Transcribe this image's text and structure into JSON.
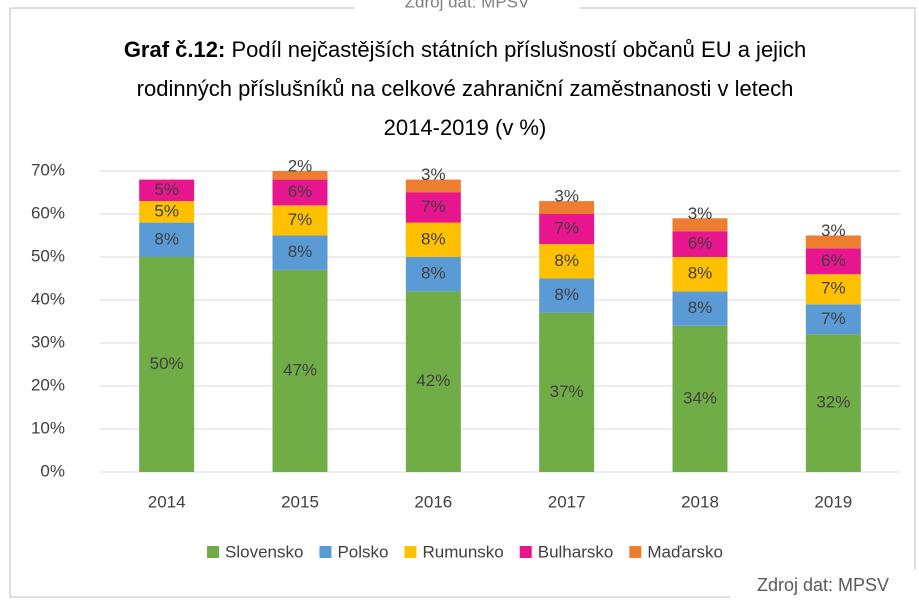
{
  "chart_data": {
    "type": "stacked_bar",
    "title_bold": "Graf č.12:",
    "title": "Podíl nejčastějších státních příslušností občanů EU a jejich rodinných příslušníků na celkové zahraniční zaměstnanosti v letech 2014-2019 (v %)",
    "source": "Zdroj dat: MPSV",
    "categories": [
      "2014",
      "2015",
      "2016",
      "2017",
      "2018",
      "2019"
    ],
    "series": [
      {
        "name": "Slovensko",
        "color": "#70ad47",
        "values": [
          50,
          47,
          42,
          37,
          34,
          32
        ],
        "value_labels": [
          "50%",
          "47%",
          "42%",
          "37%",
          "34%",
          "32%"
        ]
      },
      {
        "name": "Polsko",
        "color": "#5b9bd5",
        "values": [
          8,
          8,
          8,
          8,
          8,
          7
        ],
        "value_labels": [
          "8%",
          "8%",
          "8%",
          "8%",
          "8%",
          "7%"
        ]
      },
      {
        "name": "Rumunsko",
        "color": "#ffc000",
        "values": [
          5,
          7,
          8,
          8,
          8,
          7
        ],
        "value_labels": [
          "5%",
          "7%",
          "8%",
          "8%",
          "8%",
          "7%"
        ]
      },
      {
        "name": "Bulharsko",
        "color": "#e7158e",
        "values": [
          5,
          6,
          7,
          7,
          6,
          6
        ],
        "value_labels": [
          "5%",
          "6%",
          "7%",
          "7%",
          "6%",
          "6%"
        ]
      },
      {
        "name": "Maďarsko",
        "color": "#ed7d31",
        "values": [
          null,
          2,
          3,
          3,
          3,
          3
        ],
        "value_labels": [
          null,
          "2%",
          "3%",
          "3%",
          "3%",
          "3%"
        ]
      }
    ],
    "ylim": [
      0,
      70
    ],
    "yticks": [
      {
        "value": 0,
        "label": "0%"
      },
      {
        "value": 10,
        "label": "10%"
      },
      {
        "value": 20,
        "label": "20%"
      },
      {
        "value": 30,
        "label": "30%"
      },
      {
        "value": 40,
        "label": "40%"
      },
      {
        "value": 50,
        "label": "50%"
      },
      {
        "value": 60,
        "label": "60%"
      },
      {
        "value": 70,
        "label": "70%"
      }
    ],
    "grid": true,
    "legend": "bottom"
  }
}
